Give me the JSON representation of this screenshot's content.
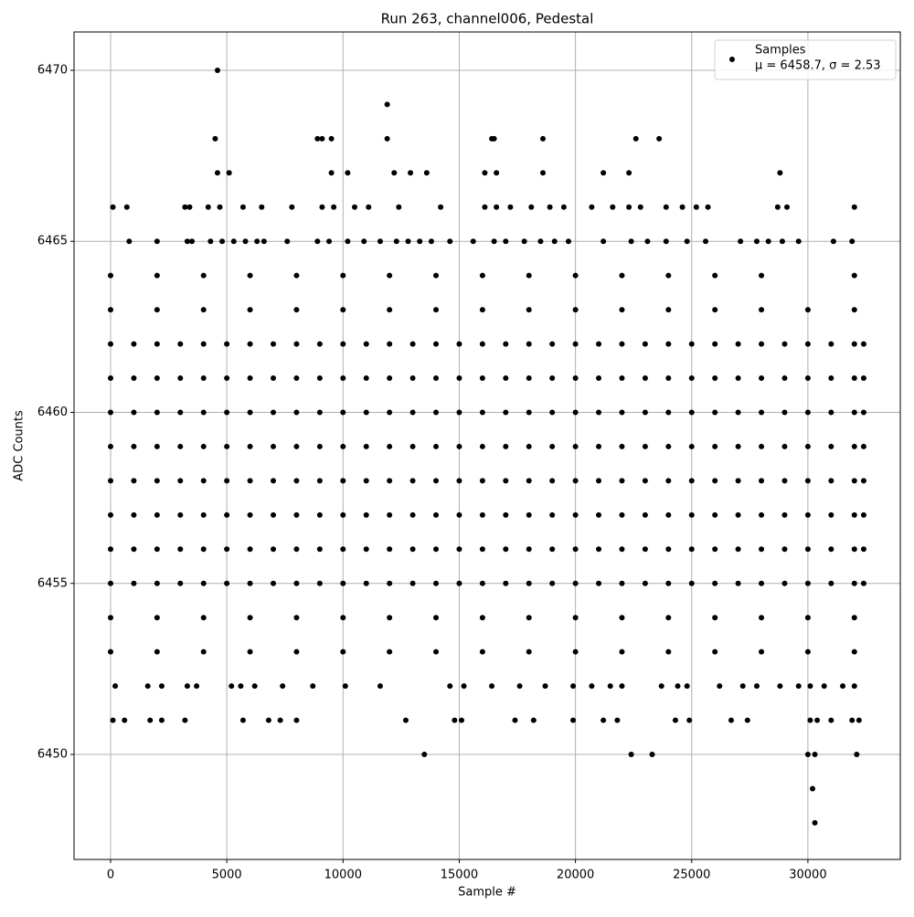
{
  "chart_data": {
    "type": "scatter",
    "title": "Run 263, channel006, Pedestal",
    "xlabel": "Sample #",
    "ylabel": "ADC Counts",
    "xlim": [
      -1573,
      33975
    ],
    "ylim": [
      6446.93,
      6471.12
    ],
    "xticks": [
      0,
      5000,
      10000,
      15000,
      20000,
      25000,
      30000
    ],
    "yticks": [
      6450,
      6455,
      6460,
      6465,
      6470
    ],
    "grid": true,
    "legend": "upper right",
    "legend_stats": "μ = 6458.7, σ = 2.53",
    "series": [
      {
        "name": "Samples",
        "color": "#000000",
        "x": [
          0,
          1000,
          2000,
          3000,
          4000,
          5000,
          6000,
          7000,
          8000,
          9000,
          10000,
          11000,
          12000,
          13000,
          14000,
          15000,
          16000,
          17000,
          18000,
          19000,
          20000,
          21000,
          22000,
          23000,
          24000,
          25000,
          26000,
          27000,
          28000,
          29000,
          30000,
          31000,
          32000,
          32400,
          0,
          1000,
          2000,
          3000,
          4000,
          5000,
          6000,
          7000,
          8000,
          9000,
          10000,
          11000,
          12000,
          13000,
          14000,
          15000,
          16000,
          17000,
          18000,
          19000,
          20000,
          21000,
          22000,
          23000,
          24000,
          25000,
          26000,
          27000,
          28000,
          29000,
          30000,
          31000,
          32000,
          32400,
          0,
          1000,
          2000,
          3000,
          4000,
          5000,
          6000,
          7000,
          8000,
          9000,
          10000,
          11000,
          12000,
          13000,
          14000,
          15000,
          16000,
          17000,
          18000,
          19000,
          20000,
          21000,
          22000,
          23000,
          24000,
          25000,
          26000,
          27000,
          28000,
          29000,
          30000,
          31000,
          32000,
          32400,
          0,
          1000,
          2000,
          3000,
          4000,
          5000,
          6000,
          7000,
          8000,
          9000,
          10000,
          11000,
          12000,
          13000,
          14000,
          15000,
          16000,
          17000,
          18000,
          19000,
          20000,
          21000,
          22000,
          23000,
          24000,
          25000,
          26000,
          27000,
          28000,
          29000,
          30000,
          31000,
          32000,
          32400,
          0,
          1000,
          2000,
          3000,
          4000,
          5000,
          6000,
          7000,
          8000,
          9000,
          10000,
          11000,
          12000,
          13000,
          14000,
          15000,
          16000,
          17000,
          18000,
          19000,
          20000,
          21000,
          22000,
          23000,
          24000,
          25000,
          26000,
          27000,
          28000,
          29000,
          30000,
          31000,
          32000,
          32400,
          0,
          1000,
          2000,
          3000,
          4000,
          5000,
          6000,
          7000,
          8000,
          9000,
          10000,
          11000,
          12000,
          13000,
          14000,
          15000,
          16000,
          17000,
          18000,
          19000,
          20000,
          21000,
          22000,
          23000,
          24000,
          25000,
          26000,
          27000,
          28000,
          29000,
          30000,
          31000,
          32000,
          32400,
          0,
          1000,
          2000,
          3000,
          4000,
          5000,
          6000,
          7000,
          8000,
          9000,
          10000,
          11000,
          12000,
          13000,
          14000,
          15000,
          16000,
          17000,
          18000,
          19000,
          20000,
          21000,
          22000,
          23000,
          24000,
          25000,
          26000,
          27000,
          28000,
          29000,
          30000,
          31000,
          32000,
          32400,
          0,
          1000,
          2000,
          3000,
          4000,
          5000,
          6000,
          7000,
          8000,
          9000,
          10000,
          11000,
          12000,
          13000,
          14000,
          15000,
          16000,
          17000,
          18000,
          19000,
          20000,
          21000,
          22000,
          23000,
          24000,
          25000,
          26000,
          27000,
          28000,
          29000,
          30000,
          31000,
          32000,
          32400,
          0,
          2000,
          4000,
          6000,
          8000,
          10000,
          12000,
          14000,
          16000,
          18000,
          20000,
          22000,
          24000,
          26000,
          28000,
          30000,
          32000,
          0,
          2000,
          4000,
          6000,
          8000,
          10000,
          12000,
          14000,
          16000,
          18000,
          20000,
          22000,
          24000,
          26000,
          28000,
          30000,
          32000,
          0,
          2000,
          4000,
          6000,
          8000,
          10000,
          12000,
          14000,
          16000,
          18000,
          20000,
          22000,
          24000,
          26000,
          28000,
          30000,
          32000,
          0,
          2000,
          4000,
          6000,
          8000,
          10000,
          12000,
          14000,
          16000,
          18000,
          20000,
          22000,
          24000,
          26000,
          28000,
          32000,
          200,
          1600,
          2200,
          3300,
          3700,
          5200,
          5600,
          6200,
          7400,
          8700,
          10100,
          11600,
          14600,
          15200,
          16400,
          17600,
          18700,
          19900,
          20700,
          21500,
          22000,
          23700,
          24400,
          24800,
          26200,
          27200,
          27800,
          28800,
          29600,
          30100,
          30700,
          31500,
          32000,
          100,
          600,
          1700,
          2200,
          3200,
          5700,
          6800,
          7300,
          8000,
          12700,
          14800,
          15100,
          17400,
          18200,
          19900,
          21200,
          21800,
          24300,
          24900,
          26700,
          27400,
          30100,
          30400,
          31000,
          31900,
          32200,
          13500,
          22400,
          23300,
          30000,
          30300,
          32100,
          30200,
          30300,
          800,
          2000,
          3300,
          3500,
          4300,
          4800,
          5300,
          5800,
          6300,
          6600,
          7600,
          8900,
          9400,
          10200,
          10900,
          11600,
          12300,
          12800,
          13300,
          13800,
          14600,
          15600,
          16500,
          17000,
          17800,
          18500,
          19100,
          19700,
          21200,
          22400,
          23100,
          23900,
          24800,
          25600,
          27100,
          27800,
          28300,
          28900,
          29600,
          31100,
          31900,
          100,
          700,
          3200,
          3400,
          4200,
          4700,
          5700,
          6500,
          7800,
          9100,
          9600,
          10500,
          11100,
          12400,
          14200,
          16100,
          16600,
          17200,
          18100,
          18900,
          19500,
          20700,
          21600,
          22300,
          22800,
          23900,
          24600,
          25200,
          25700,
          28700,
          29100,
          32000,
          4600,
          5100,
          9500,
          10200,
          12200,
          12900,
          13600,
          16100,
          16600,
          18600,
          21200,
          22300,
          28800,
          4500,
          8900,
          9100,
          9500,
          11900,
          16400,
          16500,
          18600,
          22600,
          23600,
          11900,
          4600
        ],
        "values": [
          6462,
          6462,
          6462,
          6462,
          6462,
          6462,
          6462,
          6462,
          6462,
          6462,
          6462,
          6462,
          6462,
          6462,
          6462,
          6462,
          6462,
          6462,
          6462,
          6462,
          6462,
          6462,
          6462,
          6462,
          6462,
          6462,
          6462,
          6462,
          6462,
          6462,
          6462,
          6462,
          6462,
          6462,
          6461,
          6461,
          6461,
          6461,
          6461,
          6461,
          6461,
          6461,
          6461,
          6461,
          6461,
          6461,
          6461,
          6461,
          6461,
          6461,
          6461,
          6461,
          6461,
          6461,
          6461,
          6461,
          6461,
          6461,
          6461,
          6461,
          6461,
          6461,
          6461,
          6461,
          6461,
          6461,
          6461,
          6461,
          6460,
          6460,
          6460,
          6460,
          6460,
          6460,
          6460,
          6460,
          6460,
          6460,
          6460,
          6460,
          6460,
          6460,
          6460,
          6460,
          6460,
          6460,
          6460,
          6460,
          6460,
          6460,
          6460,
          6460,
          6460,
          6460,
          6460,
          6460,
          6460,
          6460,
          6460,
          6460,
          6460,
          6460,
          6459,
          6459,
          6459,
          6459,
          6459,
          6459,
          6459,
          6459,
          6459,
          6459,
          6459,
          6459,
          6459,
          6459,
          6459,
          6459,
          6459,
          6459,
          6459,
          6459,
          6459,
          6459,
          6459,
          6459,
          6459,
          6459,
          6459,
          6459,
          6459,
          6459,
          6459,
          6459,
          6459,
          6459,
          6458,
          6458,
          6458,
          6458,
          6458,
          6458,
          6458,
          6458,
          6458,
          6458,
          6458,
          6458,
          6458,
          6458,
          6458,
          6458,
          6458,
          6458,
          6458,
          6458,
          6458,
          6458,
          6458,
          6458,
          6458,
          6458,
          6458,
          6458,
          6458,
          6458,
          6458,
          6458,
          6458,
          6458,
          6457,
          6457,
          6457,
          6457,
          6457,
          6457,
          6457,
          6457,
          6457,
          6457,
          6457,
          6457,
          6457,
          6457,
          6457,
          6457,
          6457,
          6457,
          6457,
          6457,
          6457,
          6457,
          6457,
          6457,
          6457,
          6457,
          6457,
          6457,
          6457,
          6457,
          6457,
          6457,
          6457,
          6457,
          6456,
          6456,
          6456,
          6456,
          6456,
          6456,
          6456,
          6456,
          6456,
          6456,
          6456,
          6456,
          6456,
          6456,
          6456,
          6456,
          6456,
          6456,
          6456,
          6456,
          6456,
          6456,
          6456,
          6456,
          6456,
          6456,
          6456,
          6456,
          6456,
          6456,
          6456,
          6456,
          6456,
          6456,
          6455,
          6455,
          6455,
          6455,
          6455,
          6455,
          6455,
          6455,
          6455,
          6455,
          6455,
          6455,
          6455,
          6455,
          6455,
          6455,
          6455,
          6455,
          6455,
          6455,
          6455,
          6455,
          6455,
          6455,
          6455,
          6455,
          6455,
          6455,
          6455,
          6455,
          6455,
          6455,
          6455,
          6455,
          6463,
          6463,
          6463,
          6463,
          6463,
          6463,
          6463,
          6463,
          6463,
          6463,
          6463,
          6463,
          6463,
          6463,
          6463,
          6463,
          6463,
          6454,
          6454,
          6454,
          6454,
          6454,
          6454,
          6454,
          6454,
          6454,
          6454,
          6454,
          6454,
          6454,
          6454,
          6454,
          6454,
          6454,
          6453,
          6453,
          6453,
          6453,
          6453,
          6453,
          6453,
          6453,
          6453,
          6453,
          6453,
          6453,
          6453,
          6453,
          6453,
          6453,
          6453,
          6464,
          6464,
          6464,
          6464,
          6464,
          6464,
          6464,
          6464,
          6464,
          6464,
          6464,
          6464,
          6464,
          6464,
          6464,
          6464,
          6452,
          6452,
          6452,
          6452,
          6452,
          6452,
          6452,
          6452,
          6452,
          6452,
          6452,
          6452,
          6452,
          6452,
          6452,
          6452,
          6452,
          6452,
          6452,
          6452,
          6452,
          6452,
          6452,
          6452,
          6452,
          6452,
          6452,
          6452,
          6452,
          6452,
          6452,
          6452,
          6452,
          6451,
          6451,
          6451,
          6451,
          6451,
          6451,
          6451,
          6451,
          6451,
          6451,
          6451,
          6451,
          6451,
          6451,
          6451,
          6451,
          6451,
          6451,
          6451,
          6451,
          6451,
          6451,
          6451,
          6451,
          6451,
          6451,
          6450,
          6450,
          6450,
          6450,
          6450,
          6450,
          6449,
          6448,
          6465,
          6465,
          6465,
          6465,
          6465,
          6465,
          6465,
          6465,
          6465,
          6465,
          6465,
          6465,
          6465,
          6465,
          6465,
          6465,
          6465,
          6465,
          6465,
          6465,
          6465,
          6465,
          6465,
          6465,
          6465,
          6465,
          6465,
          6465,
          6465,
          6465,
          6465,
          6465,
          6465,
          6465,
          6465,
          6465,
          6465,
          6465,
          6465,
          6465,
          6465,
          6466,
          6466,
          6466,
          6466,
          6466,
          6466,
          6466,
          6466,
          6466,
          6466,
          6466,
          6466,
          6466,
          6466,
          6466,
          6466,
          6466,
          6466,
          6466,
          6466,
          6466,
          6466,
          6466,
          6466,
          6466,
          6466,
          6466,
          6466,
          6466,
          6466,
          6466,
          6466,
          6467,
          6467,
          6467,
          6467,
          6467,
          6467,
          6467,
          6467,
          6467,
          6467,
          6467,
          6467,
          6467,
          6468,
          6468,
          6468,
          6468,
          6468,
          6468,
          6468,
          6468,
          6468,
          6468,
          6469,
          6470
        ]
      }
    ]
  }
}
